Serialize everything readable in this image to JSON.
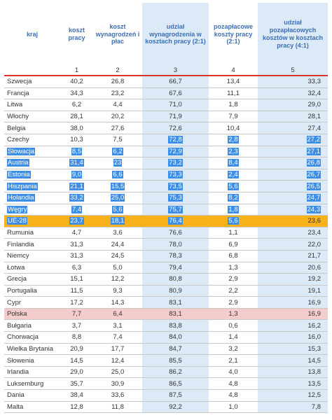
{
  "table": {
    "header": [
      "kraj",
      "koszt pracy",
      "koszt wynagrodzeń i płac",
      "udział wynagrodzenia w kosztach pracy (2:1)",
      "pozapłacowe koszty pracy (2:1)",
      "udział pozapłacowych kosztów w kosztach pracy (4:1)"
    ],
    "column_numbers": [
      "1",
      "2",
      "3",
      "4",
      "5"
    ],
    "rows": [
      [
        "Szwecja",
        "40,2",
        "26,8",
        "66,7",
        "13,4",
        "33,3"
      ],
      [
        "Francja",
        "34,3",
        "23,2",
        "67,6",
        "11,1",
        "32,4"
      ],
      [
        "Litwa",
        "6,2",
        "4,4",
        "71,0",
        "1,8",
        "29,0"
      ],
      [
        "Włochy",
        "28,1",
        "20,2",
        "71,9",
        "7,9",
        "28,1"
      ],
      [
        "Belgia",
        "38,0",
        "27,6",
        "72,6",
        "10,4",
        "27,4"
      ],
      [
        "Czechy",
        "10,3",
        "7,5",
        "72,8",
        "2,8",
        "27,2"
      ],
      [
        "Słowacja",
        "8,5",
        "6,2",
        "72,9",
        "2,3",
        "27,1"
      ],
      [
        "Austria",
        "31,4",
        "23",
        "73,2",
        "8,4",
        "26,8"
      ],
      [
        "Estonia",
        "9,0",
        "6,6",
        "73,3",
        "2,4",
        "26,7"
      ],
      [
        "Hiszpania",
        "21,1",
        "15,5",
        "73,5",
        "5,6",
        "26,5"
      ],
      [
        "Holandia",
        "33,2",
        "25,0",
        "75,3",
        "8,2",
        "24,7"
      ],
      [
        "Węgry",
        "7,4",
        "5,6",
        "75,7",
        "1,8",
        "24,3"
      ],
      [
        "UE-28",
        "23,7",
        "18,1",
        "76,4",
        "5,6",
        "23,6"
      ],
      [
        "Rumunia",
        "4,7",
        "3,6",
        "76,6",
        "1,1",
        "23,4"
      ],
      [
        "Finlandia",
        "31,3",
        "24,4",
        "78,0",
        "6,9",
        "22,0"
      ],
      [
        "Niemcy",
        "31,3",
        "24,5",
        "78,3",
        "6,8",
        "21,7"
      ],
      [
        "Łotwa",
        "6,3",
        "5,0",
        "79,4",
        "1,3",
        "20,6"
      ],
      [
        "Grecja",
        "15,1",
        "12,2",
        "80,8",
        "2,9",
        "19,2"
      ],
      [
        "Portugalia",
        "11,5",
        "9,3",
        "80,9",
        "2,2",
        "19,1"
      ],
      [
        "Cypr",
        "17,2",
        "14,3",
        "83,1",
        "2,9",
        "16,9"
      ],
      [
        "Polska",
        "7,7",
        "6,4",
        "83,1",
        "1,3",
        "16,9"
      ],
      [
        "Bułgaria",
        "3,7",
        "3,1",
        "83,8",
        "0,6",
        "16,2"
      ],
      [
        "Chorwacja",
        "8,8",
        "7,4",
        "84,0",
        "1,4",
        "16,0"
      ],
      [
        "Wielka Brytania",
        "20,9",
        "17,7",
        "84,7",
        "3,2",
        "15,3"
      ],
      [
        "Słowenia",
        "14,5",
        "12,4",
        "85,5",
        "2,1",
        "14,5"
      ],
      [
        "Irlandia",
        "29,0",
        "25,0",
        "86,2",
        "4,0",
        "13,8"
      ],
      [
        "Luksemburg",
        "35,7",
        "30,9",
        "86,5",
        "4,8",
        "13,5"
      ],
      [
        "Dania",
        "38,4",
        "33,6",
        "87,5",
        "4,8",
        "12,5"
      ],
      [
        "Malta",
        "12,8",
        "11,8",
        "92,2",
        "1,0",
        "7,8"
      ]
    ]
  }
}
